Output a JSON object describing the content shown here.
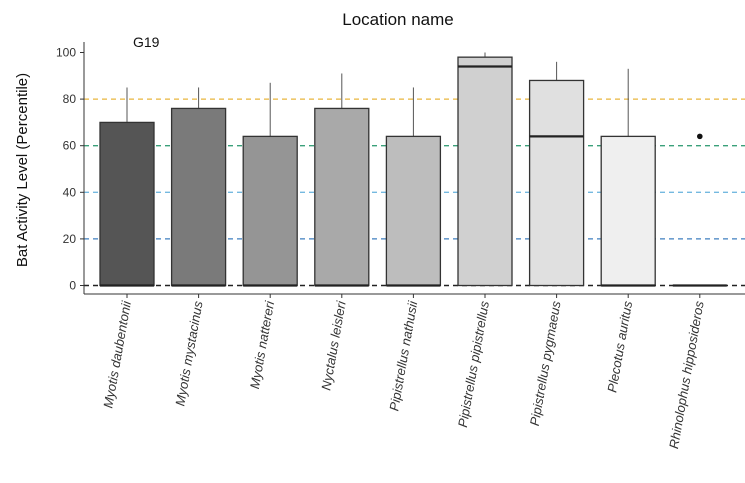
{
  "chart_data": {
    "type": "box",
    "title": "Location name",
    "panel_label": "G19",
    "xlabel": "",
    "ylabel": "Bat Activity Level (Percentile)",
    "ylim": [
      -2,
      105
    ],
    "yticks": [
      0,
      20,
      40,
      60,
      80,
      100
    ],
    "grid": false,
    "reference_lines": [
      {
        "y": 80,
        "color": "#e8b53d"
      },
      {
        "y": 60,
        "color": "#3aa07a"
      },
      {
        "y": 40,
        "color": "#74b9e0"
      },
      {
        "y": 20,
        "color": "#3f7fbf"
      },
      {
        "y": 0,
        "color": "#222222"
      }
    ],
    "categories": [
      "Myotis daubentonii",
      "Myotis mystacinus",
      "Myotis nattereri",
      "Nyctalus leisleri",
      "Pipistrellus nathusii",
      "Pipistrellus pipistrellus",
      "Pipistrellus pygmaeus",
      "Plecotus auritus",
      "Rhinolophus hipposideros"
    ],
    "boxes": [
      {
        "q1": 0,
        "median": 0,
        "q3": 70,
        "whisker_low": 0,
        "whisker_high": 85,
        "outliers": [],
        "fill": "#555555"
      },
      {
        "q1": 0,
        "median": 0,
        "q3": 76,
        "whisker_low": 0,
        "whisker_high": 85,
        "outliers": [],
        "fill": "#7a7a7a"
      },
      {
        "q1": 0,
        "median": 0,
        "q3": 64,
        "whisker_low": 0,
        "whisker_high": 87,
        "outliers": [],
        "fill": "#959595"
      },
      {
        "q1": 0,
        "median": 0,
        "q3": 76,
        "whisker_low": 0,
        "whisker_high": 91,
        "outliers": [],
        "fill": "#a9a9a9"
      },
      {
        "q1": 0,
        "median": 0,
        "q3": 64,
        "whisker_low": 0,
        "whisker_high": 85,
        "outliers": [],
        "fill": "#bdbdbd"
      },
      {
        "q1": 0,
        "median": 94,
        "q3": 98,
        "whisker_low": 0,
        "whisker_high": 100,
        "outliers": [],
        "fill": "#d0d0d0"
      },
      {
        "q1": 0,
        "median": 64,
        "q3": 88,
        "whisker_low": 0,
        "whisker_high": 96,
        "outliers": [],
        "fill": "#e0e0e0"
      },
      {
        "q1": 0,
        "median": 0,
        "q3": 64,
        "whisker_low": 0,
        "whisker_high": 93,
        "outliers": [],
        "fill": "#efefef"
      },
      {
        "q1": 0,
        "median": 0,
        "q3": 0,
        "whisker_low": 0,
        "whisker_high": 0,
        "outliers": [
          64
        ],
        "fill": "#f7f7f7"
      }
    ]
  }
}
